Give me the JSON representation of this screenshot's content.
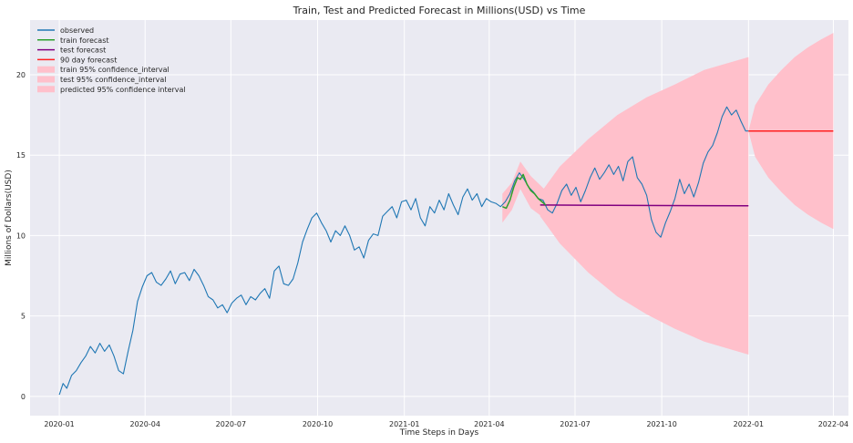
{
  "chart_data": {
    "type": "line",
    "title": "Train, Test and Predicted Forecast in Millions(USD) vs Time",
    "xlabel": "Time Steps in Days",
    "ylabel": "Millions of Dollars(USD)",
    "xlim": [
      "2019-12-01",
      "2022-04-17"
    ],
    "ylim": [
      -1.2,
      23.4
    ],
    "x_ticks": [
      "2020-01-01",
      "2020-04-01",
      "2020-07-01",
      "2020-10-01",
      "2021-01-01",
      "2021-04-01",
      "2021-07-01",
      "2021-10-01",
      "2022-01-01",
      "2022-04-01"
    ],
    "x_tick_labels": [
      "2020-01",
      "2020-04",
      "2020-07",
      "2020-10",
      "2021-01",
      "2021-04",
      "2021-07",
      "2021-10",
      "2022-01",
      "2022-04"
    ],
    "y_ticks": [
      0,
      5,
      10,
      15,
      20
    ],
    "y_tick_labels": [
      "0",
      "5",
      "10",
      "15",
      "20"
    ],
    "grid": true,
    "legend_position": "top-left",
    "colors": {
      "plot_bg": "#eaeaf2",
      "grid": "#ffffff",
      "observed": "#1f77b4",
      "train": "#2ca02c",
      "test": "#800080",
      "forecast": "#ff2020",
      "ci": "#ffc0cb",
      "text": "#262626"
    },
    "series": [
      {
        "name": "observed",
        "color": "#1f77b4",
        "points": [
          [
            "2020-01-01",
            0.1
          ],
          [
            "2020-01-05",
            0.8
          ],
          [
            "2020-01-09",
            0.5
          ],
          [
            "2020-01-14",
            1.3
          ],
          [
            "2020-01-19",
            1.6
          ],
          [
            "2020-01-24",
            2.1
          ],
          [
            "2020-01-29",
            2.5
          ],
          [
            "2020-02-03",
            3.1
          ],
          [
            "2020-02-08",
            2.7
          ],
          [
            "2020-02-13",
            3.3
          ],
          [
            "2020-02-18",
            2.8
          ],
          [
            "2020-02-23",
            3.2
          ],
          [
            "2020-02-28",
            2.5
          ],
          [
            "2020-03-04",
            1.6
          ],
          [
            "2020-03-09",
            1.4
          ],
          [
            "2020-03-14",
            2.8
          ],
          [
            "2020-03-19",
            4.1
          ],
          [
            "2020-03-24",
            5.9
          ],
          [
            "2020-03-29",
            6.8
          ],
          [
            "2020-04-03",
            7.5
          ],
          [
            "2020-04-08",
            7.7
          ],
          [
            "2020-04-13",
            7.1
          ],
          [
            "2020-04-18",
            6.9
          ],
          [
            "2020-04-23",
            7.3
          ],
          [
            "2020-04-28",
            7.8
          ],
          [
            "2020-05-03",
            7.0
          ],
          [
            "2020-05-08",
            7.6
          ],
          [
            "2020-05-13",
            7.7
          ],
          [
            "2020-05-18",
            7.2
          ],
          [
            "2020-05-23",
            7.9
          ],
          [
            "2020-05-28",
            7.5
          ],
          [
            "2020-06-02",
            6.9
          ],
          [
            "2020-06-07",
            6.2
          ],
          [
            "2020-06-12",
            6.0
          ],
          [
            "2020-06-17",
            5.5
          ],
          [
            "2020-06-22",
            5.7
          ],
          [
            "2020-06-27",
            5.2
          ],
          [
            "2020-07-02",
            5.8
          ],
          [
            "2020-07-07",
            6.1
          ],
          [
            "2020-07-12",
            6.3
          ],
          [
            "2020-07-17",
            5.7
          ],
          [
            "2020-07-22",
            6.2
          ],
          [
            "2020-07-27",
            6.0
          ],
          [
            "2020-08-01",
            6.4
          ],
          [
            "2020-08-06",
            6.7
          ],
          [
            "2020-08-11",
            6.1
          ],
          [
            "2020-08-16",
            7.8
          ],
          [
            "2020-08-21",
            8.1
          ],
          [
            "2020-08-26",
            7.0
          ],
          [
            "2020-08-31",
            6.9
          ],
          [
            "2020-09-05",
            7.3
          ],
          [
            "2020-09-10",
            8.3
          ],
          [
            "2020-09-15",
            9.6
          ],
          [
            "2020-09-20",
            10.4
          ],
          [
            "2020-09-25",
            11.1
          ],
          [
            "2020-09-30",
            11.4
          ],
          [
            "2020-10-05",
            10.8
          ],
          [
            "2020-10-10",
            10.3
          ],
          [
            "2020-10-15",
            9.6
          ],
          [
            "2020-10-20",
            10.3
          ],
          [
            "2020-10-25",
            10.0
          ],
          [
            "2020-10-30",
            10.6
          ],
          [
            "2020-11-04",
            10.0
          ],
          [
            "2020-11-09",
            9.1
          ],
          [
            "2020-11-14",
            9.3
          ],
          [
            "2020-11-19",
            8.6
          ],
          [
            "2020-11-24",
            9.7
          ],
          [
            "2020-11-29",
            10.1
          ],
          [
            "2020-12-04",
            10.0
          ],
          [
            "2020-12-09",
            11.2
          ],
          [
            "2020-12-14",
            11.5
          ],
          [
            "2020-12-19",
            11.8
          ],
          [
            "2020-12-24",
            11.1
          ],
          [
            "2020-12-29",
            12.1
          ],
          [
            "2021-01-03",
            12.2
          ],
          [
            "2021-01-08",
            11.6
          ],
          [
            "2021-01-13",
            12.3
          ],
          [
            "2021-01-18",
            11.1
          ],
          [
            "2021-01-23",
            10.6
          ],
          [
            "2021-01-28",
            11.8
          ],
          [
            "2021-02-02",
            11.4
          ],
          [
            "2021-02-07",
            12.2
          ],
          [
            "2021-02-12",
            11.6
          ],
          [
            "2021-02-17",
            12.6
          ],
          [
            "2021-02-22",
            11.9
          ],
          [
            "2021-02-27",
            11.3
          ],
          [
            "2021-03-04",
            12.4
          ],
          [
            "2021-03-09",
            12.9
          ],
          [
            "2021-03-14",
            12.2
          ],
          [
            "2021-03-19",
            12.6
          ],
          [
            "2021-03-24",
            11.8
          ],
          [
            "2021-03-29",
            12.3
          ],
          [
            "2021-04-03",
            12.1
          ],
          [
            "2021-04-08",
            12.0
          ],
          [
            "2021-04-13",
            11.8
          ],
          [
            "2021-04-18",
            12.1
          ],
          [
            "2021-04-23",
            12.6
          ],
          [
            "2021-04-28",
            13.4
          ],
          [
            "2021-05-03",
            13.9
          ],
          [
            "2021-05-08",
            13.5
          ],
          [
            "2021-05-13",
            13.0
          ],
          [
            "2021-05-18",
            12.7
          ],
          [
            "2021-05-23",
            12.3
          ],
          [
            "2021-05-28",
            12.2
          ],
          [
            "2021-06-02",
            11.6
          ],
          [
            "2021-06-07",
            11.4
          ],
          [
            "2021-06-12",
            12.0
          ],
          [
            "2021-06-17",
            12.8
          ],
          [
            "2021-06-22",
            13.2
          ],
          [
            "2021-06-27",
            12.5
          ],
          [
            "2021-07-02",
            13.0
          ],
          [
            "2021-07-07",
            12.1
          ],
          [
            "2021-07-12",
            12.8
          ],
          [
            "2021-07-17",
            13.6
          ],
          [
            "2021-07-22",
            14.2
          ],
          [
            "2021-07-27",
            13.5
          ],
          [
            "2021-08-01",
            13.9
          ],
          [
            "2021-08-06",
            14.4
          ],
          [
            "2021-08-11",
            13.8
          ],
          [
            "2021-08-16",
            14.3
          ],
          [
            "2021-08-21",
            13.4
          ],
          [
            "2021-08-26",
            14.6
          ],
          [
            "2021-08-31",
            14.9
          ],
          [
            "2021-09-05",
            13.6
          ],
          [
            "2021-09-10",
            13.2
          ],
          [
            "2021-09-15",
            12.5
          ],
          [
            "2021-09-20",
            11.0
          ],
          [
            "2021-09-25",
            10.2
          ],
          [
            "2021-09-30",
            9.9
          ],
          [
            "2021-10-05",
            10.8
          ],
          [
            "2021-10-10",
            11.5
          ],
          [
            "2021-10-15",
            12.3
          ],
          [
            "2021-10-20",
            13.5
          ],
          [
            "2021-10-25",
            12.6
          ],
          [
            "2021-10-30",
            13.2
          ],
          [
            "2021-11-04",
            12.4
          ],
          [
            "2021-11-09",
            13.3
          ],
          [
            "2021-11-14",
            14.5
          ],
          [
            "2021-11-19",
            15.2
          ],
          [
            "2021-11-24",
            15.6
          ],
          [
            "2021-11-29",
            16.4
          ],
          [
            "2021-12-04",
            17.4
          ],
          [
            "2021-12-09",
            18.0
          ],
          [
            "2021-12-14",
            17.5
          ],
          [
            "2021-12-19",
            17.8
          ],
          [
            "2021-12-24",
            17.1
          ],
          [
            "2021-12-29",
            16.5
          ],
          [
            "2022-01-01",
            16.5
          ]
        ]
      },
      {
        "name": "train forecast",
        "color": "#2ca02c",
        "points": [
          [
            "2021-04-15",
            11.8
          ],
          [
            "2021-04-19",
            11.7
          ],
          [
            "2021-04-23",
            12.2
          ],
          [
            "2021-04-27",
            13.0
          ],
          [
            "2021-05-01",
            13.6
          ],
          [
            "2021-05-04",
            13.5
          ],
          [
            "2021-05-07",
            13.8
          ],
          [
            "2021-05-11",
            13.2
          ],
          [
            "2021-05-15",
            12.8
          ],
          [
            "2021-05-19",
            12.6
          ],
          [
            "2021-05-23",
            12.3
          ],
          [
            "2021-05-27",
            12.1
          ],
          [
            "2021-05-31",
            11.9
          ]
        ]
      },
      {
        "name": "test forecast",
        "color": "#800080",
        "points": [
          [
            "2021-05-25",
            11.9
          ],
          [
            "2022-01-01",
            11.85
          ]
        ]
      },
      {
        "name": "90 day forecast",
        "color": "#ff2020",
        "points": [
          [
            "2022-01-01",
            16.5
          ],
          [
            "2022-04-01",
            16.5
          ]
        ]
      }
    ],
    "intervals": [
      {
        "name": "train 95% confidence_interval",
        "color": "#ffc0cb",
        "upper": [
          [
            "2021-04-15",
            12.6
          ],
          [
            "2021-04-25",
            13.3
          ],
          [
            "2021-05-04",
            14.6
          ],
          [
            "2021-05-15",
            13.7
          ],
          [
            "2021-05-31",
            12.8
          ]
        ],
        "lower": [
          [
            "2021-04-15",
            10.8
          ],
          [
            "2021-04-25",
            11.6
          ],
          [
            "2021-05-04",
            12.9
          ],
          [
            "2021-05-15",
            11.7
          ],
          [
            "2021-05-31",
            11.0
          ]
        ]
      },
      {
        "name": "test 95% confidence_interval",
        "color": "#ffc0cb",
        "upper": [
          [
            "2021-05-25",
            12.6
          ],
          [
            "2021-06-15",
            14.3
          ],
          [
            "2021-07-15",
            16.0
          ],
          [
            "2021-08-15",
            17.5
          ],
          [
            "2021-09-15",
            18.6
          ],
          [
            "2021-10-15",
            19.4
          ],
          [
            "2021-11-15",
            20.3
          ],
          [
            "2022-01-01",
            21.1
          ]
        ],
        "lower": [
          [
            "2021-05-25",
            11.2
          ],
          [
            "2021-06-15",
            9.5
          ],
          [
            "2021-07-15",
            7.7
          ],
          [
            "2021-08-15",
            6.2
          ],
          [
            "2021-09-15",
            5.1
          ],
          [
            "2021-10-15",
            4.2
          ],
          [
            "2021-11-15",
            3.4
          ],
          [
            "2022-01-01",
            2.6
          ]
        ]
      },
      {
        "name": "predicted 95% confidence interval",
        "color": "#ffc0cb",
        "upper": [
          [
            "2022-01-01",
            16.5
          ],
          [
            "2022-01-08",
            18.1
          ],
          [
            "2022-01-22",
            19.4
          ],
          [
            "2022-02-05",
            20.3
          ],
          [
            "2022-02-19",
            21.1
          ],
          [
            "2022-03-05",
            21.7
          ],
          [
            "2022-03-19",
            22.2
          ],
          [
            "2022-04-01",
            22.6
          ]
        ],
        "lower": [
          [
            "2022-01-01",
            16.5
          ],
          [
            "2022-01-08",
            14.9
          ],
          [
            "2022-01-22",
            13.6
          ],
          [
            "2022-02-05",
            12.7
          ],
          [
            "2022-02-19",
            11.9
          ],
          [
            "2022-03-05",
            11.3
          ],
          [
            "2022-03-19",
            10.8
          ],
          [
            "2022-04-01",
            10.4
          ]
        ]
      }
    ]
  }
}
